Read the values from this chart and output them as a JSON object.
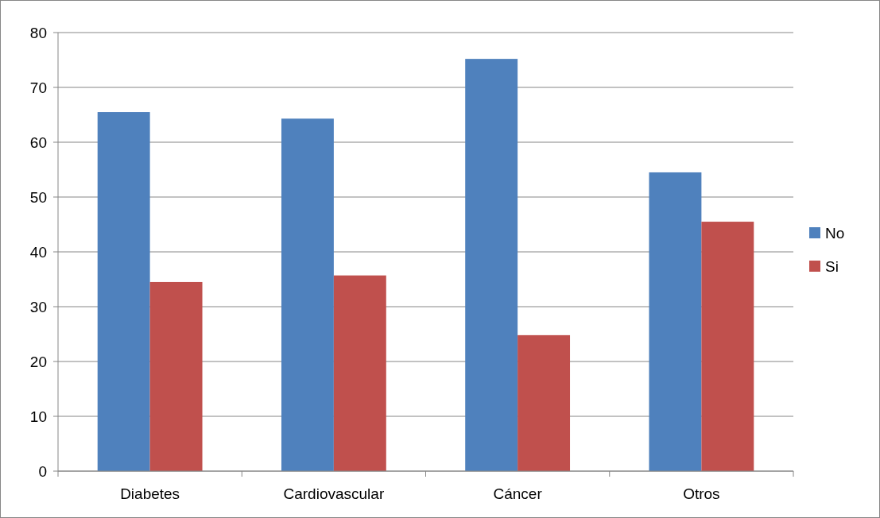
{
  "chart_data": {
    "type": "bar",
    "categories": [
      "Diabetes",
      "Cardiovascular",
      "Cáncer",
      "Otros"
    ],
    "series": [
      {
        "name": "No",
        "color": "#4f81bd",
        "values": [
          65.5,
          64.3,
          75.2,
          54.5
        ]
      },
      {
        "name": "Si",
        "color": "#c0504d",
        "values": [
          34.5,
          35.7,
          24.8,
          45.5
        ]
      }
    ],
    "ylim": [
      0,
      80
    ],
    "yticks": [
      0,
      10,
      20,
      30,
      40,
      50,
      60,
      70,
      80
    ],
    "grid": "y",
    "legend": "right"
  }
}
